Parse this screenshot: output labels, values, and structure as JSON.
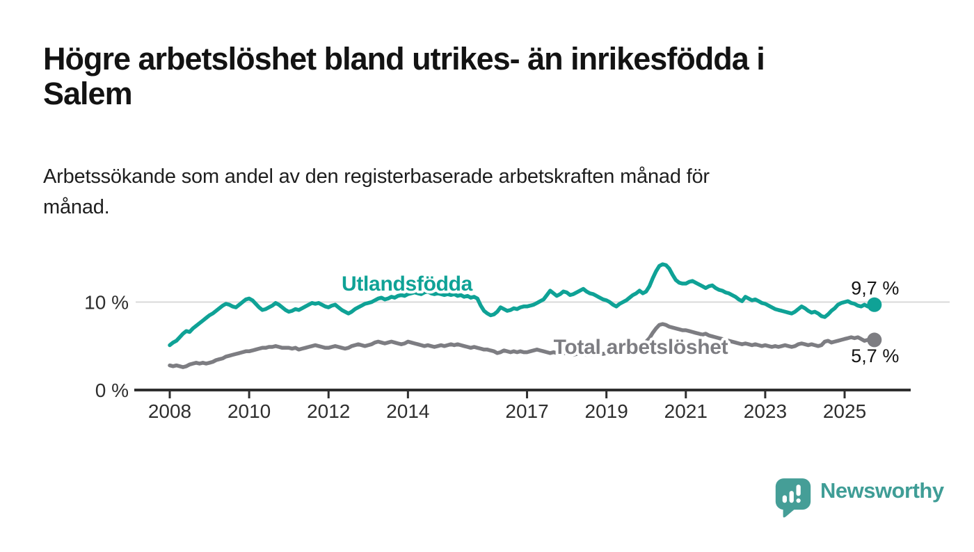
{
  "title_lines": [
    "Högre arbetslöshet bland utrikes- än inrikesfödda i",
    "Salem"
  ],
  "subtitle_lines": [
    "Arbetssökande som andel av den registerbaserade arbetskraften månad för",
    "månad."
  ],
  "branding": {
    "logo_text": "Newsworthy",
    "logo_icon": "speech-bubble-bar-chart-icon"
  },
  "colors": {
    "foreign_born_line": "#0fa296",
    "total_line": "#7d7d82",
    "axis": "#2f2f2f",
    "gridline": "#d9d9d9",
    "title_text": "#131313",
    "brand_teal": "#3f9d96"
  },
  "chart_data": {
    "type": "line",
    "frequency": "monthly",
    "x_range": {
      "start": "2008-01",
      "end": "2025-10"
    },
    "ylim": [
      0,
      15
    ],
    "grid_values": [
      10
    ],
    "legend_position": "inline-labels",
    "y_ticks": [
      {
        "value": 0,
        "label": "0 %"
      },
      {
        "value": 10,
        "label": "10 %"
      }
    ],
    "x_ticks": [
      {
        "year": 2008,
        "label": "2008"
      },
      {
        "year": 2010,
        "label": "2010"
      },
      {
        "year": 2012,
        "label": "2012"
      },
      {
        "year": 2014,
        "label": "2014"
      },
      {
        "year": 2017,
        "label": "2017"
      },
      {
        "year": 2019,
        "label": "2019"
      },
      {
        "year": 2021,
        "label": "2021"
      },
      {
        "year": 2023,
        "label": "2023"
      },
      {
        "year": 2025,
        "label": "2025"
      }
    ],
    "series": [
      {
        "name": "Utlandsfödda",
        "color": "#0fa296",
        "end_label": "9,7 %",
        "end_value": 9.7,
        "values": [
          5.1,
          5.4,
          5.6,
          6.0,
          6.4,
          6.7,
          6.6,
          7.0,
          7.3,
          7.6,
          7.9,
          8.2,
          8.5,
          8.7,
          9.0,
          9.3,
          9.6,
          9.8,
          9.7,
          9.5,
          9.4,
          9.7,
          10.0,
          10.3,
          10.4,
          10.2,
          9.8,
          9.4,
          9.1,
          9.2,
          9.4,
          9.6,
          9.9,
          9.7,
          9.4,
          9.1,
          8.9,
          9.0,
          9.2,
          9.1,
          9.3,
          9.5,
          9.7,
          9.9,
          9.8,
          9.9,
          9.7,
          9.5,
          9.4,
          9.6,
          9.7,
          9.4,
          9.1,
          8.9,
          8.7,
          8.9,
          9.2,
          9.4,
          9.6,
          9.8,
          9.9,
          10.0,
          10.2,
          10.4,
          10.5,
          10.3,
          10.4,
          10.6,
          10.5,
          10.7,
          10.8,
          10.7,
          10.9,
          11.0,
          11.1,
          11.0,
          10.9,
          11.1,
          11.2,
          11.0,
          10.9,
          11.0,
          10.9,
          10.8,
          10.9,
          10.8,
          10.9,
          10.7,
          10.8,
          10.6,
          10.7,
          10.5,
          10.6,
          10.4,
          9.6,
          9.0,
          8.7,
          8.5,
          8.6,
          8.9,
          9.4,
          9.2,
          9.0,
          9.1,
          9.3,
          9.2,
          9.4,
          9.5,
          9.5,
          9.6,
          9.7,
          9.9,
          10.1,
          10.3,
          10.8,
          11.3,
          11.0,
          10.7,
          10.9,
          11.2,
          11.1,
          10.8,
          10.9,
          11.1,
          11.3,
          11.5,
          11.2,
          11.0,
          10.9,
          10.7,
          10.5,
          10.3,
          10.2,
          10.0,
          9.7,
          9.5,
          9.8,
          10.0,
          10.2,
          10.5,
          10.8,
          11.0,
          11.3,
          11.0,
          11.2,
          11.8,
          12.7,
          13.5,
          14.1,
          14.3,
          14.2,
          13.8,
          13.1,
          12.5,
          12.2,
          12.1,
          12.1,
          12.3,
          12.4,
          12.2,
          12.0,
          11.8,
          11.6,
          11.8,
          11.9,
          11.6,
          11.4,
          11.3,
          11.1,
          11.0,
          10.8,
          10.6,
          10.3,
          10.1,
          10.6,
          10.4,
          10.2,
          10.3,
          10.1,
          9.9,
          9.8,
          9.6,
          9.4,
          9.2,
          9.1,
          9.0,
          8.9,
          8.8,
          8.7,
          8.9,
          9.2,
          9.5,
          9.3,
          9.0,
          8.8,
          8.9,
          8.7,
          8.4,
          8.3,
          8.6,
          9.0,
          9.3,
          9.7,
          9.9,
          10.0,
          10.1,
          9.9,
          9.8,
          9.6,
          9.5,
          9.7,
          9.5,
          9.4,
          9.7
        ]
      },
      {
        "name": "Total arbetslöshet",
        "color": "#7d7d82",
        "end_label": "5,7 %",
        "end_value": 5.7,
        "values": [
          2.8,
          2.7,
          2.8,
          2.7,
          2.6,
          2.7,
          2.9,
          3.0,
          3.1,
          3.0,
          3.1,
          3.0,
          3.1,
          3.2,
          3.4,
          3.5,
          3.6,
          3.8,
          3.9,
          4.0,
          4.1,
          4.2,
          4.3,
          4.4,
          4.4,
          4.5,
          4.6,
          4.7,
          4.8,
          4.8,
          4.9,
          4.9,
          5.0,
          4.9,
          4.8,
          4.8,
          4.8,
          4.7,
          4.8,
          4.6,
          4.7,
          4.8,
          4.9,
          5.0,
          5.1,
          5.0,
          4.9,
          4.8,
          4.8,
          4.9,
          5.0,
          4.9,
          4.8,
          4.7,
          4.8,
          5.0,
          5.1,
          5.2,
          5.1,
          5.0,
          5.1,
          5.2,
          5.4,
          5.5,
          5.4,
          5.3,
          5.4,
          5.5,
          5.4,
          5.3,
          5.2,
          5.3,
          5.5,
          5.4,
          5.3,
          5.2,
          5.1,
          5.0,
          5.1,
          5.0,
          4.9,
          5.0,
          5.1,
          5.0,
          5.1,
          5.2,
          5.1,
          5.2,
          5.1,
          5.0,
          4.9,
          4.8,
          4.9,
          4.8,
          4.7,
          4.6,
          4.6,
          4.5,
          4.4,
          4.2,
          4.3,
          4.5,
          4.4,
          4.3,
          4.4,
          4.3,
          4.4,
          4.3,
          4.3,
          4.4,
          4.5,
          4.6,
          4.5,
          4.4,
          4.3,
          4.2,
          4.3,
          4.2,
          4.1,
          4.2,
          4.2,
          4.1,
          4.0,
          4.1,
          4.2,
          4.1,
          4.0,
          4.1,
          4.0,
          4.1,
          4.2,
          4.1,
          4.2,
          4.3,
          4.2,
          4.3,
          4.4,
          4.5,
          4.6,
          4.7,
          4.8,
          4.9,
          5.0,
          5.2,
          5.5,
          5.9,
          6.5,
          7.0,
          7.4,
          7.5,
          7.4,
          7.2,
          7.1,
          7.0,
          6.9,
          6.8,
          6.8,
          6.7,
          6.6,
          6.5,
          6.4,
          6.3,
          6.4,
          6.2,
          6.1,
          6.0,
          5.9,
          5.8,
          5.7,
          5.6,
          5.5,
          5.4,
          5.3,
          5.2,
          5.3,
          5.2,
          5.1,
          5.2,
          5.1,
          5.0,
          5.1,
          5.0,
          4.9,
          5.0,
          4.9,
          5.0,
          5.1,
          5.0,
          4.9,
          5.0,
          5.2,
          5.3,
          5.2,
          5.1,
          5.2,
          5.1,
          5.0,
          5.1,
          5.5,
          5.6,
          5.4,
          5.5,
          5.6,
          5.7,
          5.8,
          5.9,
          6.0,
          5.9,
          6.0,
          5.8,
          5.6,
          5.7,
          5.9,
          5.7
        ]
      }
    ]
  }
}
